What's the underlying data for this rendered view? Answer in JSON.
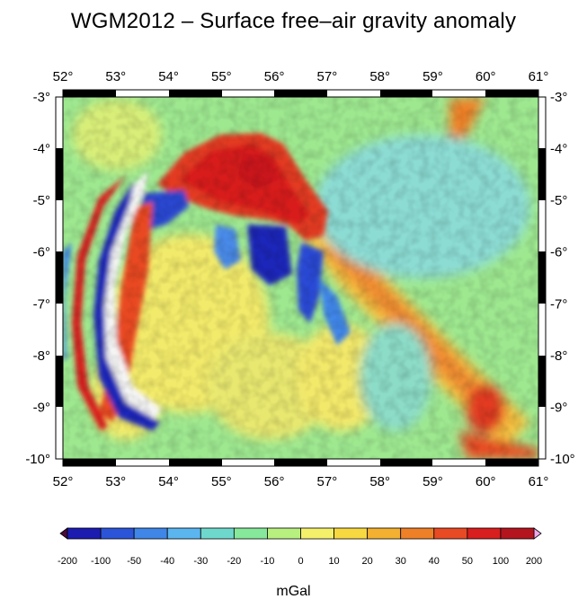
{
  "title": "WGM2012 – Surface free–air gravity anomaly",
  "map": {
    "lon_ticks": [
      "52°",
      "53°",
      "54°",
      "55°",
      "56°",
      "57°",
      "58°",
      "59°",
      "60°",
      "61°"
    ],
    "lat_ticks": [
      "-3°",
      "-4°",
      "-5°",
      "-6°",
      "-7°",
      "-8°",
      "-9°",
      "-10°"
    ],
    "lon_range": [
      52,
      61
    ],
    "lat_range": [
      -10,
      -3
    ]
  },
  "colorbar": {
    "labels": [
      "-200",
      "-100",
      "-50",
      "-40",
      "-30",
      "-20",
      "-10",
      "0",
      "10",
      "20",
      "30",
      "40",
      "50",
      "100",
      "200"
    ],
    "colors": [
      "#1c1cb0",
      "#2b54d8",
      "#3f86e8",
      "#5bb6f0",
      "#6fd8cc",
      "#86e89a",
      "#b8f080",
      "#f4f06a",
      "#f8d840",
      "#f4b030",
      "#ee8028",
      "#e84a24",
      "#d81e1e",
      "#b4141e"
    ],
    "low_color": "#4a0a3a",
    "high_color": "#f4a6e8",
    "unit": "mGal"
  }
}
